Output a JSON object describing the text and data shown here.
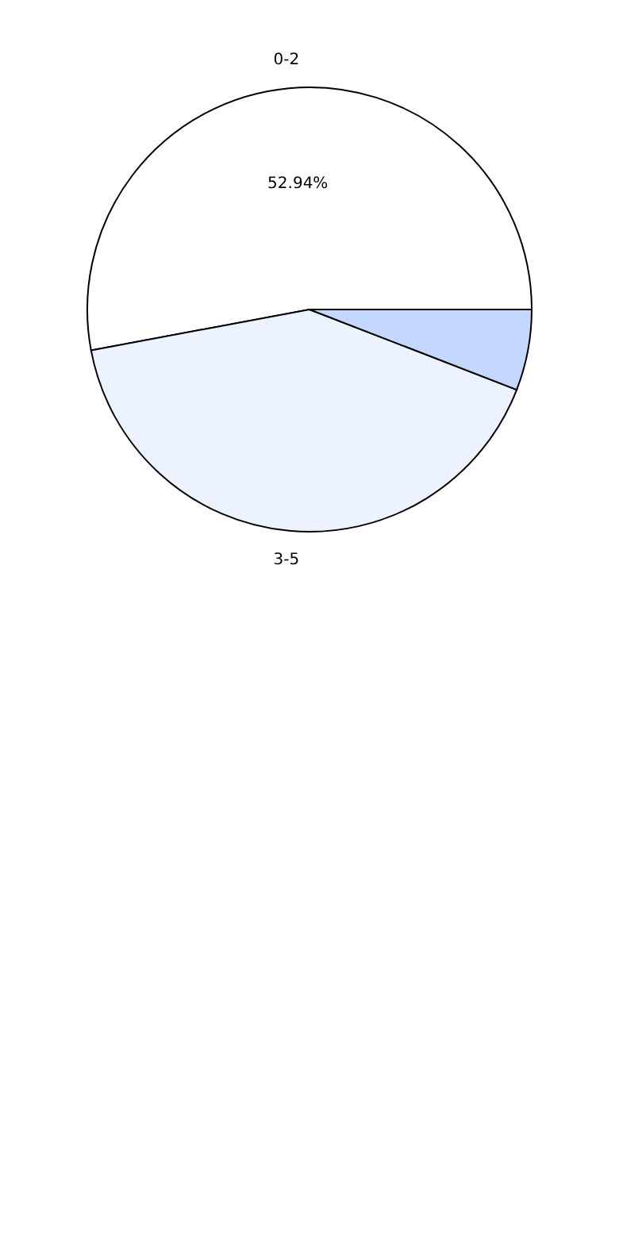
{
  "chart_data": {
    "type": "pie",
    "categories": [
      "0-2",
      "3-5",
      null
    ],
    "values": [
      52.94,
      41.18,
      5.88
    ],
    "colors": [
      "#ffffff",
      "#ecf2fe",
      "#c4d8fe"
    ],
    "value_labels": [
      "52.94%",
      null,
      null
    ],
    "legend": false
  }
}
